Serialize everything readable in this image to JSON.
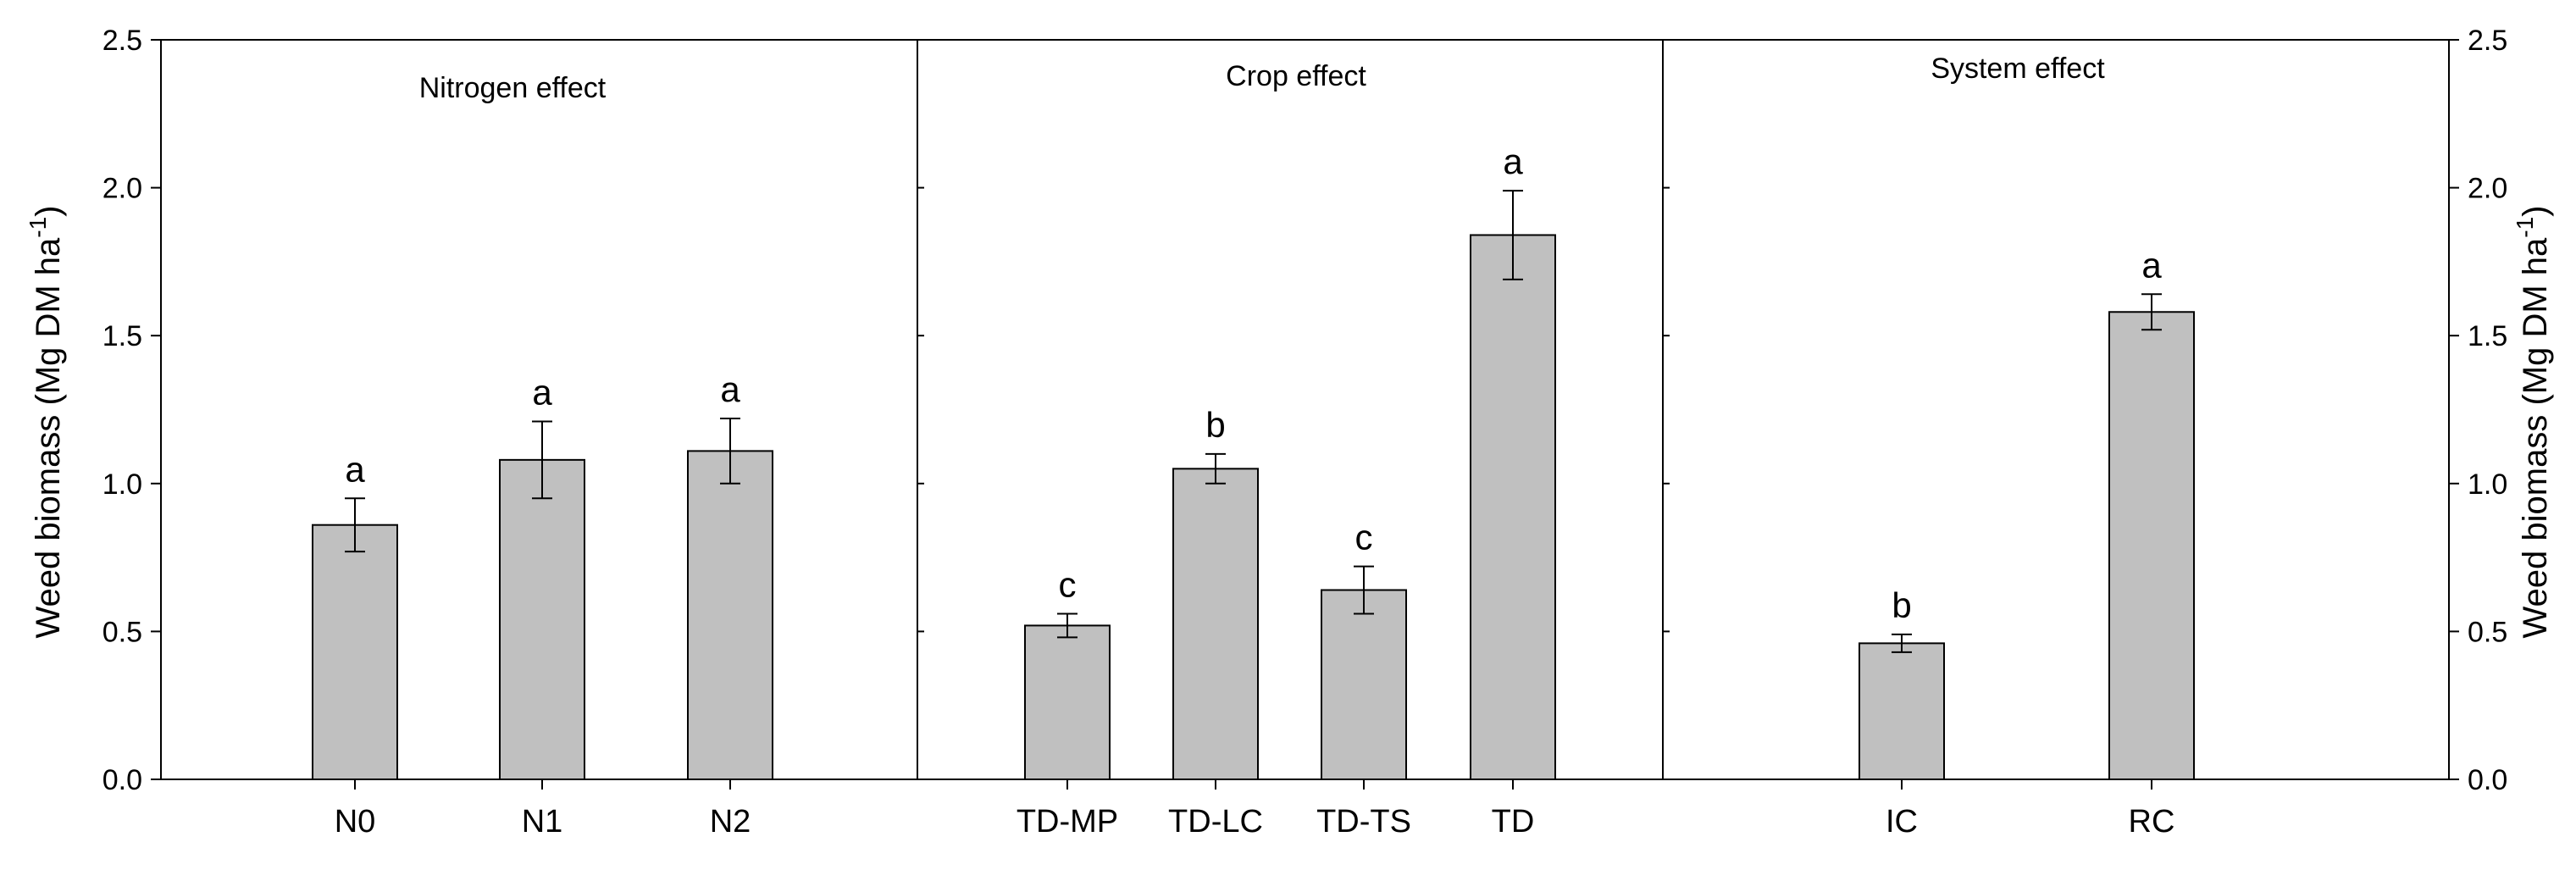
{
  "chart_data": {
    "type": "bar",
    "ylabel_main": "Weed biomass (Mg DM ha",
    "ylabel_sup": "-1",
    "ylabel_close": ")",
    "ylim": [
      0,
      2.5
    ],
    "yticks": [
      "0.0",
      "0.5",
      "1.0",
      "1.5",
      "2.0",
      "2.5"
    ],
    "colors": {
      "bar": "#c0c0c0",
      "axis": "#000000"
    },
    "panels": [
      {
        "title": "Nitrogen effect",
        "categories": [
          "N0",
          "N1",
          "N2"
        ],
        "values": [
          0.86,
          1.08,
          1.11
        ],
        "errors": [
          0.09,
          0.13,
          0.11
        ],
        "letters": [
          "a",
          "a",
          "a"
        ]
      },
      {
        "title": "Crop effect",
        "categories": [
          "TD-MP",
          "TD-LC",
          "TD-TS",
          "TD"
        ],
        "values": [
          0.52,
          1.05,
          0.64,
          1.84
        ],
        "errors": [
          0.04,
          0.05,
          0.08,
          0.15
        ],
        "letters": [
          "c",
          "b",
          "c",
          "a"
        ]
      },
      {
        "title": "System effect",
        "categories": [
          "IC",
          "RC"
        ],
        "values": [
          0.46,
          1.58
        ],
        "errors": [
          0.03,
          0.06
        ],
        "letters": [
          "b",
          "a"
        ]
      }
    ]
  }
}
